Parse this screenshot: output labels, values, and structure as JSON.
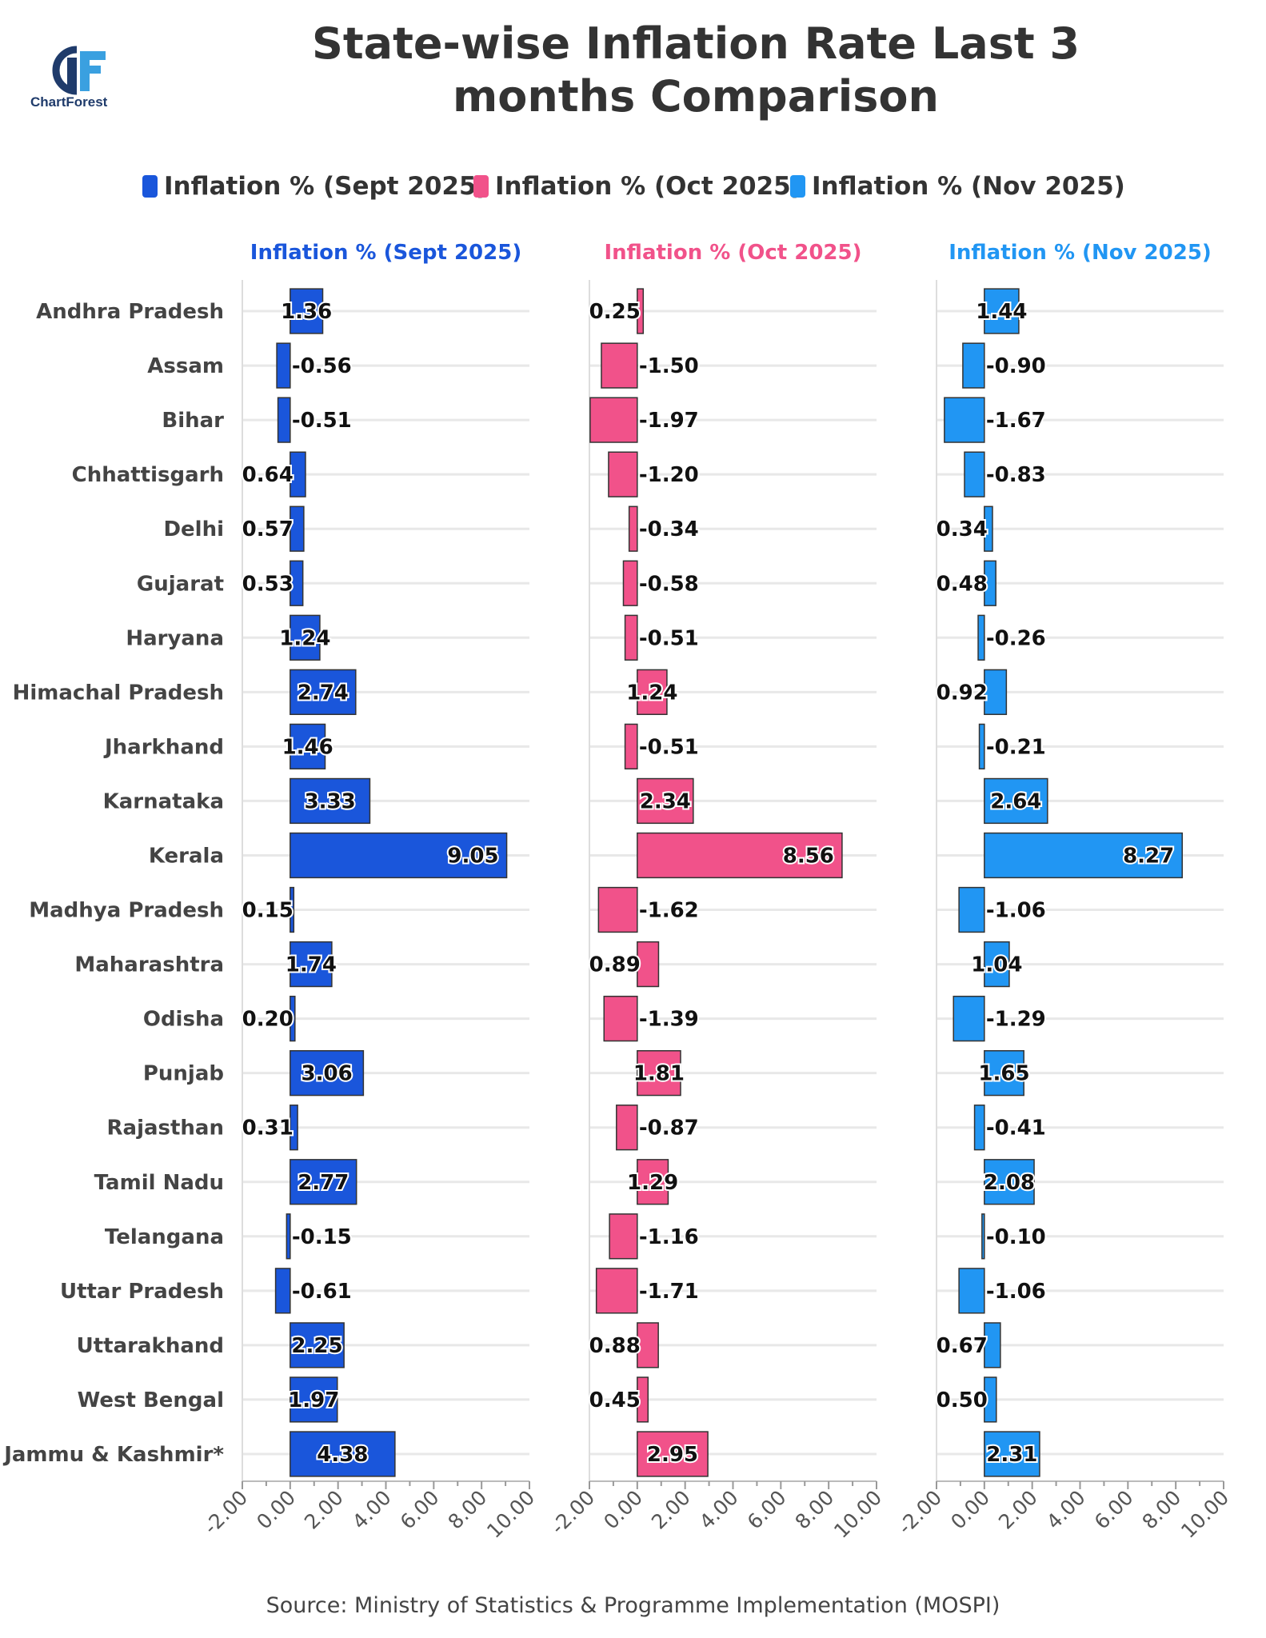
{
  "header": {
    "title": "State-wise Inflation Rate Last 3 months Comparison",
    "logo_text": "ChartForest"
  },
  "footer": {
    "source": "Source: Ministry of Statistics & Programme Implementation (MOSPI)"
  },
  "chart_data": {
    "type": "bar",
    "orientation": "horizontal",
    "layout": "small-multiples",
    "title": "State-wise Inflation Rate Last 3 months Comparison",
    "legend_position": "top",
    "grid": true,
    "xlim": [
      -2,
      10
    ],
    "x_ticks": [
      "-2.00",
      "0.00",
      "2.00",
      "4.00",
      "6.00",
      "8.00",
      "10.00"
    ],
    "categories": [
      "Andhra Pradesh",
      "Assam",
      "Bihar",
      "Chhattisgarh",
      "Delhi",
      "Gujarat",
      "Haryana",
      "Himachal Pradesh",
      "Jharkhand",
      "Karnataka",
      "Kerala",
      "Madhya Pradesh",
      "Maharashtra",
      "Odisha",
      "Punjab",
      "Rajasthan",
      "Tamil Nadu",
      "Telangana",
      "Uttar Pradesh",
      "Uttarakhand",
      "West Bengal",
      "Jammu & Kashmir*"
    ],
    "series": [
      {
        "name": "Inflation % (Sept 2025)",
        "color": "#1a56db",
        "values": [
          1.36,
          -0.56,
          -0.51,
          0.64,
          0.57,
          0.53,
          1.24,
          2.74,
          1.46,
          3.33,
          9.05,
          0.15,
          1.74,
          0.2,
          3.06,
          0.31,
          2.77,
          -0.15,
          -0.61,
          2.25,
          1.97,
          4.38
        ]
      },
      {
        "name": "Inflation % (Oct 2025)",
        "color": "#f1528a",
        "values": [
          0.25,
          -1.5,
          -1.97,
          -1.2,
          -0.34,
          -0.58,
          -0.51,
          1.24,
          -0.51,
          2.34,
          8.56,
          -1.62,
          0.89,
          -1.39,
          1.81,
          -0.87,
          1.29,
          -1.16,
          -1.71,
          0.88,
          0.45,
          2.95
        ]
      },
      {
        "name": "Inflation % (Nov 2025)",
        "color": "#2196f3",
        "values": [
          1.44,
          -0.9,
          -1.67,
          -0.83,
          0.34,
          0.48,
          -0.26,
          0.92,
          -0.21,
          2.64,
          8.27,
          -1.06,
          1.04,
          -1.29,
          1.65,
          -0.41,
          2.08,
          -0.1,
          -1.06,
          0.67,
          0.5,
          2.31
        ]
      }
    ]
  }
}
